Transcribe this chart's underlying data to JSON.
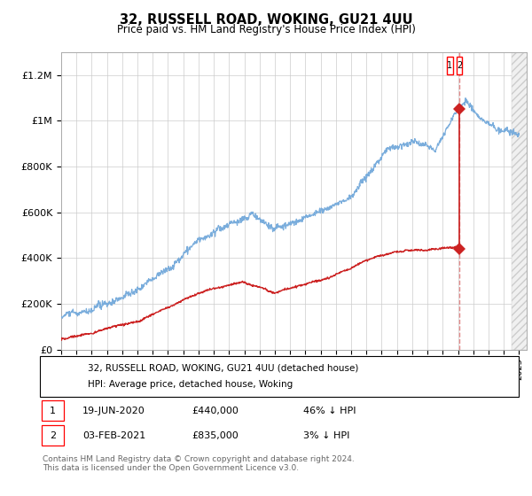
{
  "title": "32, RUSSELL ROAD, WOKING, GU21 4UU",
  "subtitle": "Price paid vs. HM Land Registry's House Price Index (HPI)",
  "hpi_color": "#7aaddc",
  "price_color": "#cc2222",
  "dashed_color": "#e08080",
  "transaction1": {
    "date_label": "19-JUN-2020",
    "x": 2020.47,
    "price": 440000,
    "note": "46% ↓ HPI"
  },
  "transaction2": {
    "date_label": "03-FEB-2021",
    "x": 2021.09,
    "price": 835000,
    "note": "3% ↓ HPI"
  },
  "legend_line1": "32, RUSSELL ROAD, WOKING, GU21 4UU (detached house)",
  "legend_line2": "HPI: Average price, detached house, Woking",
  "footer": "Contains HM Land Registry data © Crown copyright and database right 2024.\nThis data is licensed under the Open Government Licence v3.0.",
  "xmin": 1995,
  "xmax": 2025.5,
  "ylim": [
    0,
    1300000
  ],
  "yticks": [
    0,
    200000,
    400000,
    600000,
    800000,
    1000000,
    1200000
  ],
  "ytick_labels": [
    "£0",
    "£200K",
    "£400K",
    "£600K",
    "£800K",
    "£1M",
    "£1.2M"
  ],
  "background_color": "#ffffff"
}
